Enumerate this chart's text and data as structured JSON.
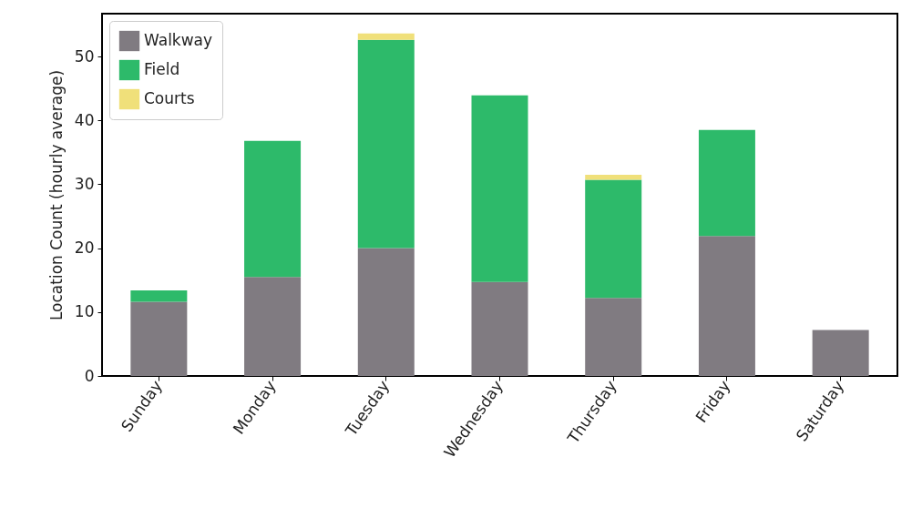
{
  "chart_data": {
    "type": "bar",
    "ylabel": "Location Count (hourly average)",
    "categories": [
      "Sunday",
      "Monday",
      "Tuesday",
      "Wednesday",
      "Thursday",
      "Friday",
      "Saturday"
    ],
    "stacked": true,
    "series": [
      {
        "name": "Walkway",
        "color": "#807b81",
        "values": [
          11.6,
          15.5,
          20.0,
          14.7,
          12.2,
          21.9,
          7.2
        ]
      },
      {
        "name": "Field",
        "color": "#2dba6a",
        "values": [
          1.8,
          21.3,
          32.6,
          29.2,
          18.5,
          16.6,
          0
        ]
      },
      {
        "name": "Courts",
        "color": "#f0e07a",
        "values": [
          0,
          0,
          1.0,
          0,
          0.8,
          0,
          0
        ]
      }
    ],
    "ylim": [
      0,
      56.7
    ],
    "yticks": [
      0,
      10,
      20,
      30,
      40,
      50
    ],
    "grid": false,
    "legend": "top left"
  }
}
